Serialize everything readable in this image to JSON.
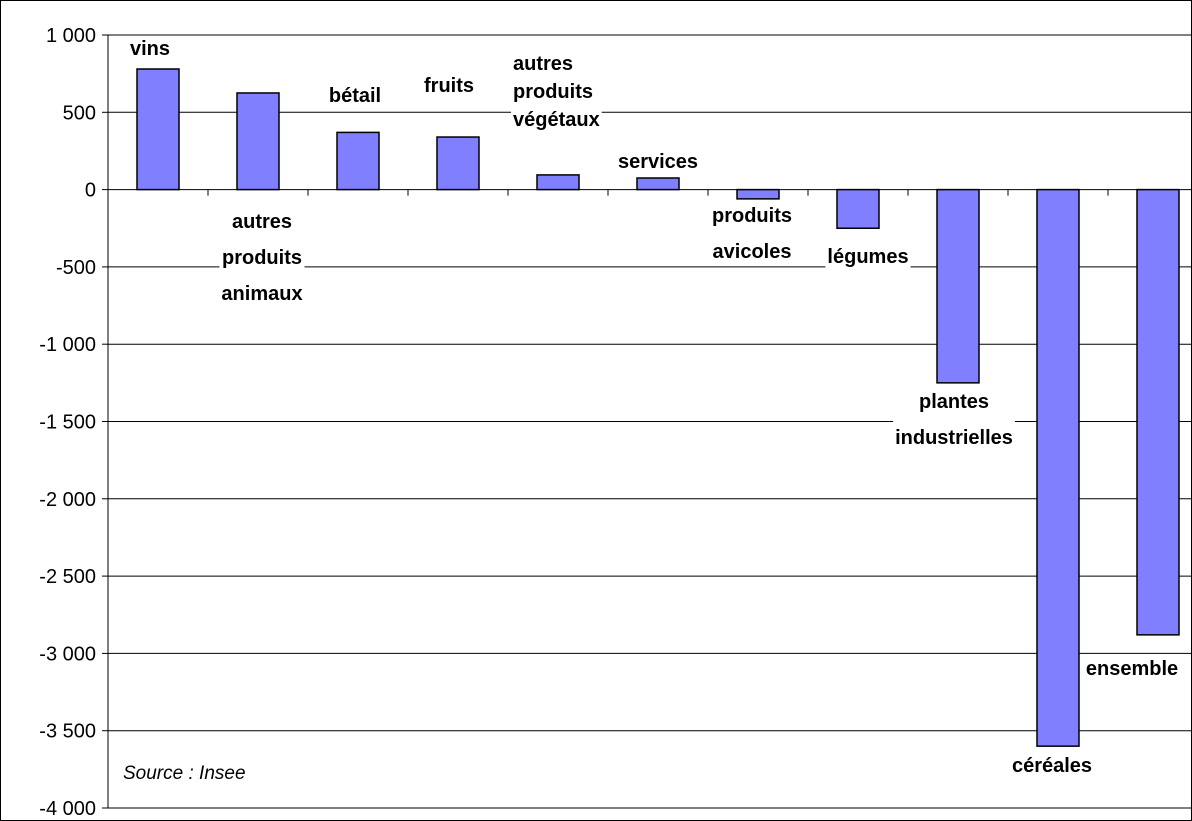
{
  "chart_data": {
    "type": "bar",
    "categories": [
      "vins",
      "autres produits animaux",
      "bétail",
      "fruits",
      "autres produits végétaux",
      "services",
      "produits avicoles",
      "légumes",
      "plantes industrielles",
      "céréales",
      "ensemble"
    ],
    "category_label_lines": [
      [
        "vins"
      ],
      [
        "autres",
        "produits",
        "animaux"
      ],
      [
        "bétail"
      ],
      [
        "fruits"
      ],
      [
        "autres",
        "produits",
        "végétaux"
      ],
      [
        "services"
      ],
      [
        "produits",
        "avicoles"
      ],
      [
        "légumes"
      ],
      [
        "plantes",
        "industrielles"
      ],
      [
        "céréales"
      ],
      [
        "ensemble"
      ]
    ],
    "values": [
      780,
      625,
      370,
      340,
      95,
      75,
      -60,
      -250,
      -1250,
      -3600,
      -2880
    ],
    "ylim": [
      -4000,
      1000
    ],
    "yticks": [
      1000,
      500,
      0,
      -500,
      -1000,
      -1500,
      -2000,
      -2500,
      -3000,
      -3500,
      -4000
    ],
    "ytick_labels": [
      "1 000",
      "500",
      "0",
      "-500",
      "-1 000",
      "-1 500",
      "-2 000",
      "-2 500",
      "-3 000",
      "-3 500",
      "-4 000"
    ],
    "grid": true,
    "bar_color": "#8080ff",
    "title": "",
    "xlabel": "",
    "ylabel": ""
  },
  "source_note": "Source : Insee"
}
